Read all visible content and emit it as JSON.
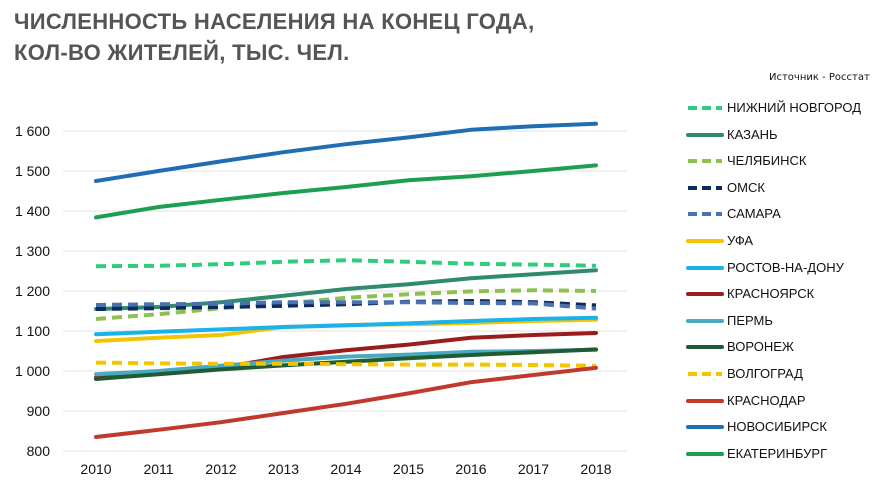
{
  "title": {
    "line1": "ЧИСЛЕННОСТЬ НАСЕЛЕНИЯ НА КОНЕЦ ГОДА,",
    "line2": "КОЛ-ВО ЖИТЕЛЕЙ, ТЫС. ЧЕЛ."
  },
  "source": "Источник - Росстат",
  "chart_data": {
    "type": "line",
    "title": "ЧИСЛЕННОСТЬ НАСЕЛЕНИЯ НА КОНЕЦ ГОДА, КОЛ-ВО ЖИТЕЛЕЙ, ТЫС. ЧЕЛ.",
    "x": [
      "2010",
      "2011",
      "2012",
      "2013",
      "2014",
      "2015",
      "2016",
      "2017",
      "2018"
    ],
    "ylim": [
      800,
      1600
    ],
    "yticks": [
      800,
      900,
      1000,
      1100,
      1200,
      1300,
      1400,
      1500,
      1600
    ],
    "ytick_labels": [
      "800",
      "900",
      "1 000",
      "1 100",
      "1 200",
      "1 300",
      "1 400",
      "1 500",
      "1 600"
    ],
    "grid": "horizontal",
    "legend": "right",
    "series": [
      {
        "name": "НИЖНИЙ НОВГОРОД",
        "color": "#2ecc7f",
        "dash": true,
        "values": [
          1262,
          1263,
          1267,
          1273,
          1277,
          1273,
          1268,
          1266,
          1263
        ]
      },
      {
        "name": "КАЗАНЬ",
        "color": "#2e8b6e",
        "dash": false,
        "values": [
          1155,
          1160,
          1172,
          1188,
          1205,
          1217,
          1232,
          1242,
          1252
        ]
      },
      {
        "name": "ЧЕЛЯБИНСК",
        "color": "#8cc152",
        "dash": true,
        "values": [
          1130,
          1142,
          1157,
          1168,
          1183,
          1192,
          1199,
          1202,
          1200
        ]
      },
      {
        "name": "ОМСК",
        "color": "#0d2b5e",
        "dash": true,
        "values": [
          1155,
          1157,
          1160,
          1163,
          1167,
          1173,
          1175,
          1172,
          1164
        ]
      },
      {
        "name": "САМАРА",
        "color": "#4a72b0",
        "dash": true,
        "values": [
          1165,
          1167,
          1168,
          1172,
          1172,
          1172,
          1170,
          1169,
          1156
        ]
      },
      {
        "name": "УФА",
        "color": "#f5c400",
        "dash": false,
        "values": [
          1075,
          1083,
          1090,
          1110,
          1115,
          1117,
          1120,
          1125,
          1128
        ]
      },
      {
        "name": "РОСТОВ-НА-ДОНУ",
        "color": "#1ab2ea",
        "dash": false,
        "values": [
          1092,
          1098,
          1104,
          1110,
          1114,
          1119,
          1125,
          1130,
          1133
        ]
      },
      {
        "name": "КРАСНОЯРСК",
        "color": "#9b1c1c",
        "dash": false,
        "values": [
          983,
          997,
          1008,
          1035,
          1052,
          1066,
          1083,
          1090,
          1095
        ]
      },
      {
        "name": "ПЕРМЬ",
        "color": "#4aa8c0",
        "dash": false,
        "values": [
          992,
          1000,
          1013,
          1026,
          1036,
          1041,
          1048,
          1050,
          1053
        ]
      },
      {
        "name": "ВОРОНЕЖ",
        "color": "#1f5c33",
        "dash": false,
        "values": [
          980,
          992,
          1004,
          1014,
          1023,
          1032,
          1040,
          1047,
          1054
        ]
      },
      {
        "name": "ВОЛГОГРАД",
        "color": "#f5c400",
        "dash": true,
        "values": [
          1021,
          1019,
          1018,
          1018,
          1017,
          1016,
          1016,
          1015,
          1013
        ]
      },
      {
        "name": "КРАСНОДАР",
        "color": "#c0392b",
        "dash": false,
        "values": [
          835,
          853,
          872,
          895,
          918,
          944,
          972,
          990,
          1008
        ]
      },
      {
        "name": "НОВОСИБИРСК",
        "color": "#1f6db3",
        "dash": false,
        "values": [
          1475,
          1500,
          1524,
          1547,
          1567,
          1584,
          1603,
          1612,
          1618
        ]
      },
      {
        "name": "ЕКАТЕРИНБУРГ",
        "color": "#1ca050",
        "dash": false,
        "values": [
          1384,
          1410,
          1428,
          1445,
          1460,
          1477,
          1487,
          1500,
          1514
        ]
      }
    ]
  }
}
